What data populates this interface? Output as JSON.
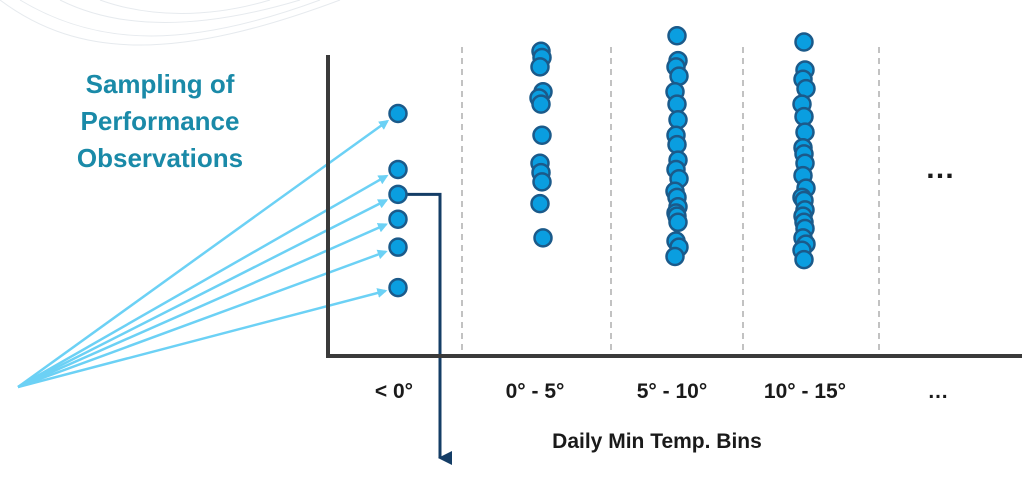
{
  "chart_data": {
    "type": "scatter",
    "title": "",
    "side_label_lines": [
      "Sampling of",
      "Performance",
      "Observations"
    ],
    "xlabel": "Daily Min Temp. Bins",
    "ylabel": "",
    "categories": [
      "< 0°",
      "0° - 5°",
      "5° - 10°",
      "10° - 15°",
      "…"
    ],
    "trailing_mark": "…",
    "bins": [
      {
        "label": "< 0°",
        "values": [
          0.78,
          0.6,
          0.52,
          0.44,
          0.35,
          0.22
        ]
      },
      {
        "label": "0° - 5°",
        "values": [
          0.98,
          0.96,
          0.93,
          0.85,
          0.83,
          0.81,
          0.71,
          0.62,
          0.59,
          0.56,
          0.49,
          0.38
        ]
      },
      {
        "label": "5° - 10°",
        "values": [
          1.03,
          0.95,
          0.93,
          0.9,
          0.85,
          0.81,
          0.76,
          0.71,
          0.68,
          0.63,
          0.6,
          0.57,
          0.53,
          0.51,
          0.48,
          0.46,
          0.45,
          0.43,
          0.37,
          0.35,
          0.32
        ]
      },
      {
        "label": "10° - 15°",
        "values": [
          1.01,
          0.92,
          0.89,
          0.86,
          0.81,
          0.77,
          0.72,
          0.67,
          0.65,
          0.62,
          0.58,
          0.54,
          0.51,
          0.5,
          0.47,
          0.45,
          0.43,
          0.41,
          0.38,
          0.36,
          0.34,
          0.31
        ]
      }
    ],
    "ylim": [
      0,
      1.1
    ],
    "grid": false,
    "bin_separators": true,
    "colors": {
      "point_fill": "#0a9ee0",
      "point_stroke": "#1b5a8a",
      "label_text": "#1a8aa8",
      "arrow": "#6cd1f5",
      "connector": "#143d66",
      "axis": "#3a3a3a",
      "separator": "#9a9a9a"
    }
  }
}
